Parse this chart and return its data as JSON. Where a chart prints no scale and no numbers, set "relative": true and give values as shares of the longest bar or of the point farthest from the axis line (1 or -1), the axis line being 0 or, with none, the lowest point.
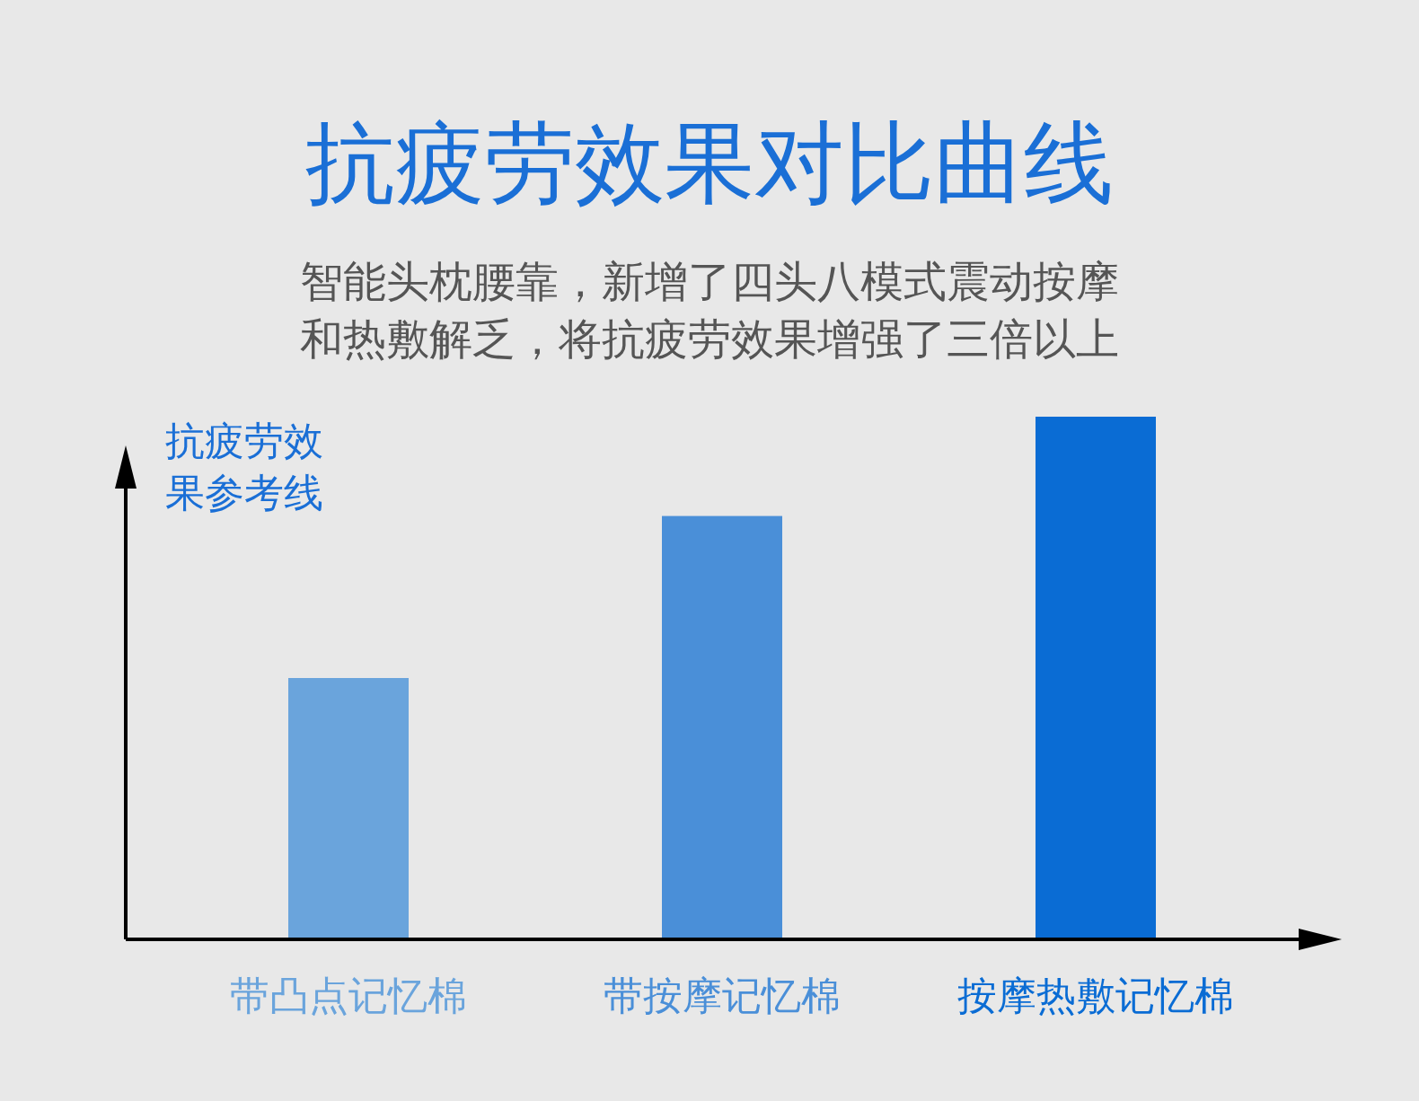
{
  "chart_data": {
    "type": "bar",
    "title": "抗疲劳效果对比曲线",
    "subtitle": "智能头枕腰靠，新增了四头八模式震动按摩和热敷解乏，将抗疲劳效果增强了三倍以上",
    "ylabel": "抗疲劳效果参考线",
    "relative": true,
    "categories": [
      "带凸点记忆棉",
      "带按摩记忆棉",
      "按摩热敷记忆棉"
    ],
    "values": [
      0.5,
      0.81,
      1
    ],
    "colors": [
      "#6aa4dc",
      "#4a8fd8",
      "#0a6cd4"
    ]
  }
}
